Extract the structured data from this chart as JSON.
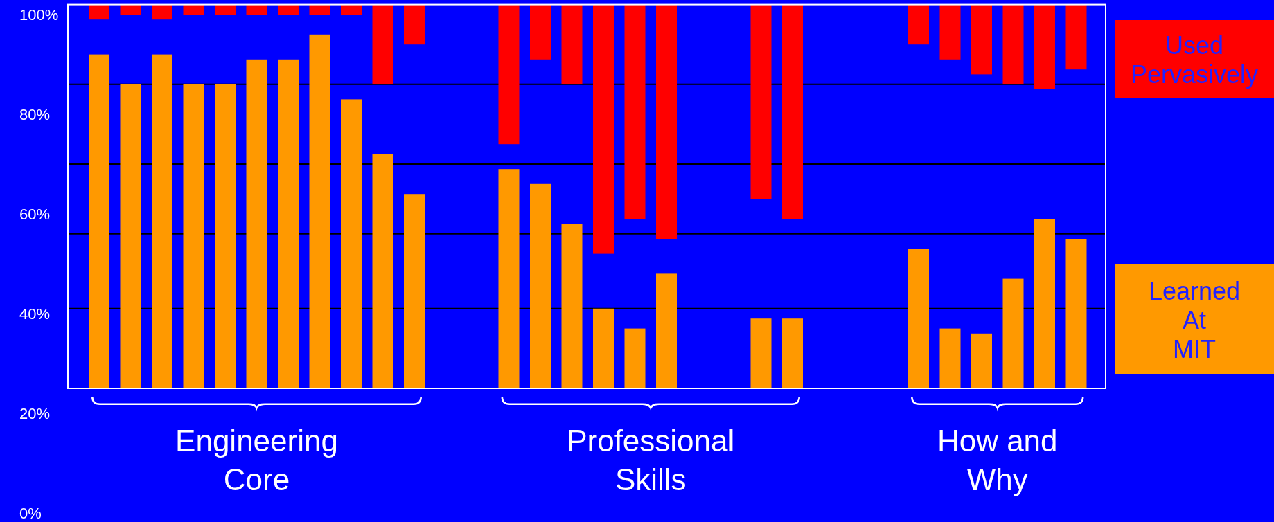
{
  "chart_data": {
    "type": "bar",
    "categories": [
      null,
      null,
      null,
      null,
      null,
      null,
      null,
      null,
      null,
      null,
      null,
      null,
      null,
      null,
      null,
      null,
      null,
      null,
      null,
      null,
      null,
      null,
      null,
      null,
      null,
      null,
      null,
      null,
      null,
      null,
      null,
      null
    ],
    "series": [
      {
        "name": "Learned At MIT",
        "color": "#ff9900",
        "base": [
          25,
          25,
          25,
          25,
          25,
          25,
          25,
          25,
          25,
          25,
          25,
          null,
          null,
          25,
          25,
          25,
          25,
          25,
          25,
          null,
          null,
          25,
          25,
          null,
          null,
          null,
          25,
          25,
          25,
          25,
          25,
          25
        ],
        "values": [
          67,
          61,
          67,
          61,
          61,
          66,
          66,
          71,
          58,
          47,
          39,
          null,
          null,
          44,
          41,
          33,
          16,
          12,
          23,
          null,
          null,
          14,
          14,
          null,
          null,
          null,
          28,
          12,
          11,
          22,
          34,
          30
        ]
      },
      {
        "name": "Used Pervasively",
        "color": "#ff0000",
        "base": [
          99,
          100,
          99,
          100,
          100,
          100,
          100,
          100,
          100,
          86,
          94,
          null,
          null,
          74,
          91,
          86,
          52,
          59,
          55,
          null,
          null,
          63,
          59,
          null,
          null,
          null,
          94,
          91,
          88,
          86,
          85,
          89
        ],
        "values": [
          3,
          2,
          3,
          2,
          2,
          2,
          2,
          2,
          2,
          16,
          8,
          null,
          null,
          28,
          11,
          16,
          50,
          43,
          47,
          null,
          null,
          39,
          43,
          null,
          null,
          null,
          8,
          11,
          14,
          16,
          17,
          13
        ]
      }
    ],
    "ylim": [
      0,
      102
    ],
    "yticks": [
      {
        "value": 0,
        "label": "0%"
      },
      {
        "value": 20,
        "label": "20%"
      },
      {
        "value": 40,
        "label": "40%"
      },
      {
        "value": 60,
        "label": "60%"
      },
      {
        "value": 80,
        "label": "80%"
      },
      {
        "value": 100,
        "label": "100%"
      }
    ],
    "tick_labels": "y",
    "legend": "right",
    "ref_lines": [
      {
        "axis": "y",
        "value": 86,
        "color": "#000000"
      },
      {
        "axis": "y",
        "value": 70,
        "color": "#000000"
      },
      {
        "axis": "y",
        "value": 56,
        "color": "#000000"
      },
      {
        "axis": "y",
        "value": 41,
        "color": "#000000"
      }
    ],
    "annotations": [
      "Engineering\nCore",
      "Professional\nSkills",
      "How and\nWhy"
    ]
  }
}
